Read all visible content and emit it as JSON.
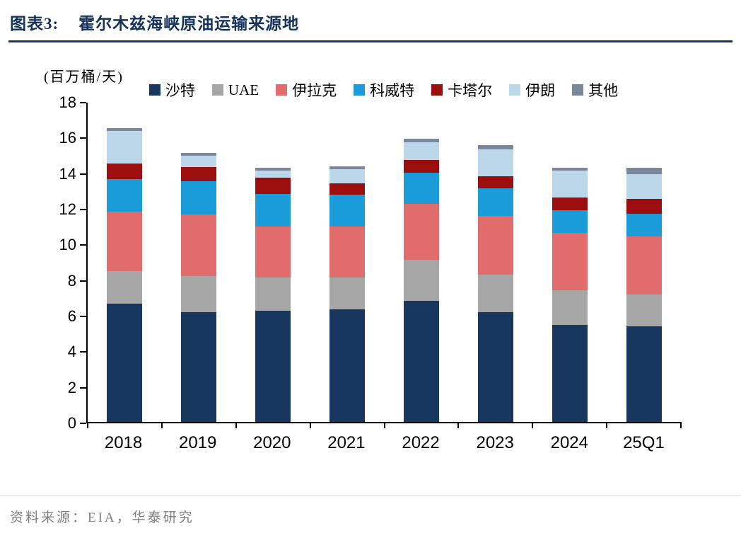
{
  "header": {
    "title_prefix": "图表3:",
    "title": "霍尔木兹海峡原油运输来源地"
  },
  "chart_data": {
    "type": "bar",
    "stacked": true,
    "title": "霍尔木兹海峡原油运输来源地",
    "unit_label": "(百万桶/天)",
    "categories": [
      "2018",
      "2019",
      "2020",
      "2021",
      "2022",
      "2023",
      "2024",
      "25Q1"
    ],
    "series": [
      {
        "name": "沙特",
        "color": "#17375e",
        "values": [
          6.65,
          6.15,
          6.25,
          6.3,
          6.8,
          6.15,
          5.45,
          5.35
        ]
      },
      {
        "name": "UAE",
        "color": "#a6a6a6",
        "values": [
          1.8,
          2.05,
          1.85,
          1.8,
          2.3,
          2.1,
          1.95,
          1.8
        ]
      },
      {
        "name": "伊拉克",
        "color": "#e06c6c",
        "values": [
          3.35,
          3.45,
          2.85,
          2.85,
          3.15,
          3.3,
          3.2,
          3.25
        ]
      },
      {
        "name": "科威特",
        "color": "#1a9cd8",
        "values": [
          1.85,
          1.85,
          1.85,
          1.8,
          1.75,
          1.55,
          1.3,
          1.3
        ]
      },
      {
        "name": "卡塔尔",
        "color": "#9c0e0e",
        "values": [
          0.85,
          0.8,
          0.9,
          0.65,
          0.7,
          0.7,
          0.7,
          0.8
        ]
      },
      {
        "name": "伊朗",
        "color": "#bdd7ea",
        "values": [
          1.85,
          0.65,
          0.4,
          0.8,
          1.0,
          1.5,
          1.5,
          1.4
        ]
      },
      {
        "name": "其他",
        "color": "#7a889e",
        "values": [
          0.15,
          0.15,
          0.15,
          0.15,
          0.2,
          0.25,
          0.15,
          0.35
        ]
      }
    ],
    "ylim": [
      0,
      18
    ],
    "ytick_step": 2,
    "legend_position": "top",
    "grid": false
  },
  "footer": {
    "source": "资料来源：EIA，华泰研究"
  }
}
